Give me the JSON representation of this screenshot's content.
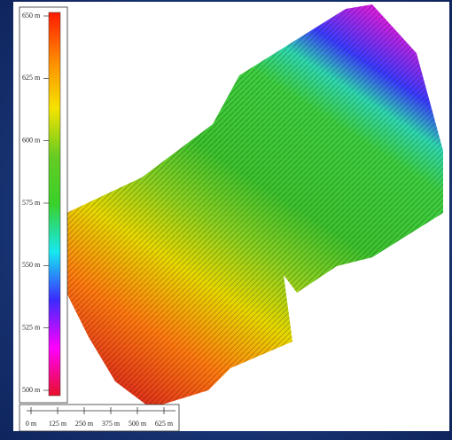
{
  "legend": {
    "range": [
      500,
      650
    ],
    "colors": [
      "#e8102a",
      "#ff00ff",
      "#3b2bff",
      "#17e8f0",
      "#39d12a",
      "#66cc22",
      "#f5e300",
      "#ff8a00",
      "#ff1a00"
    ],
    "ticks": [
      {
        "value": 650,
        "label": "650 m"
      },
      {
        "value": 625,
        "label": "625 m"
      },
      {
        "value": 600,
        "label": "600 m"
      },
      {
        "value": 575,
        "label": "575 m"
      },
      {
        "value": 550,
        "label": "550 m"
      },
      {
        "value": 525,
        "label": "525 m"
      },
      {
        "value": 500,
        "label": "500 m"
      }
    ]
  },
  "scale_bar": {
    "range": [
      0,
      625
    ],
    "ticks": [
      {
        "value": 0,
        "label": "0 m"
      },
      {
        "value": 125,
        "label": "125 m"
      },
      {
        "value": 250,
        "label": "250 m"
      },
      {
        "value": 375,
        "label": "375 m"
      },
      {
        "value": 500,
        "label": "500 m"
      },
      {
        "value": 625,
        "label": "625 m"
      }
    ]
  }
}
